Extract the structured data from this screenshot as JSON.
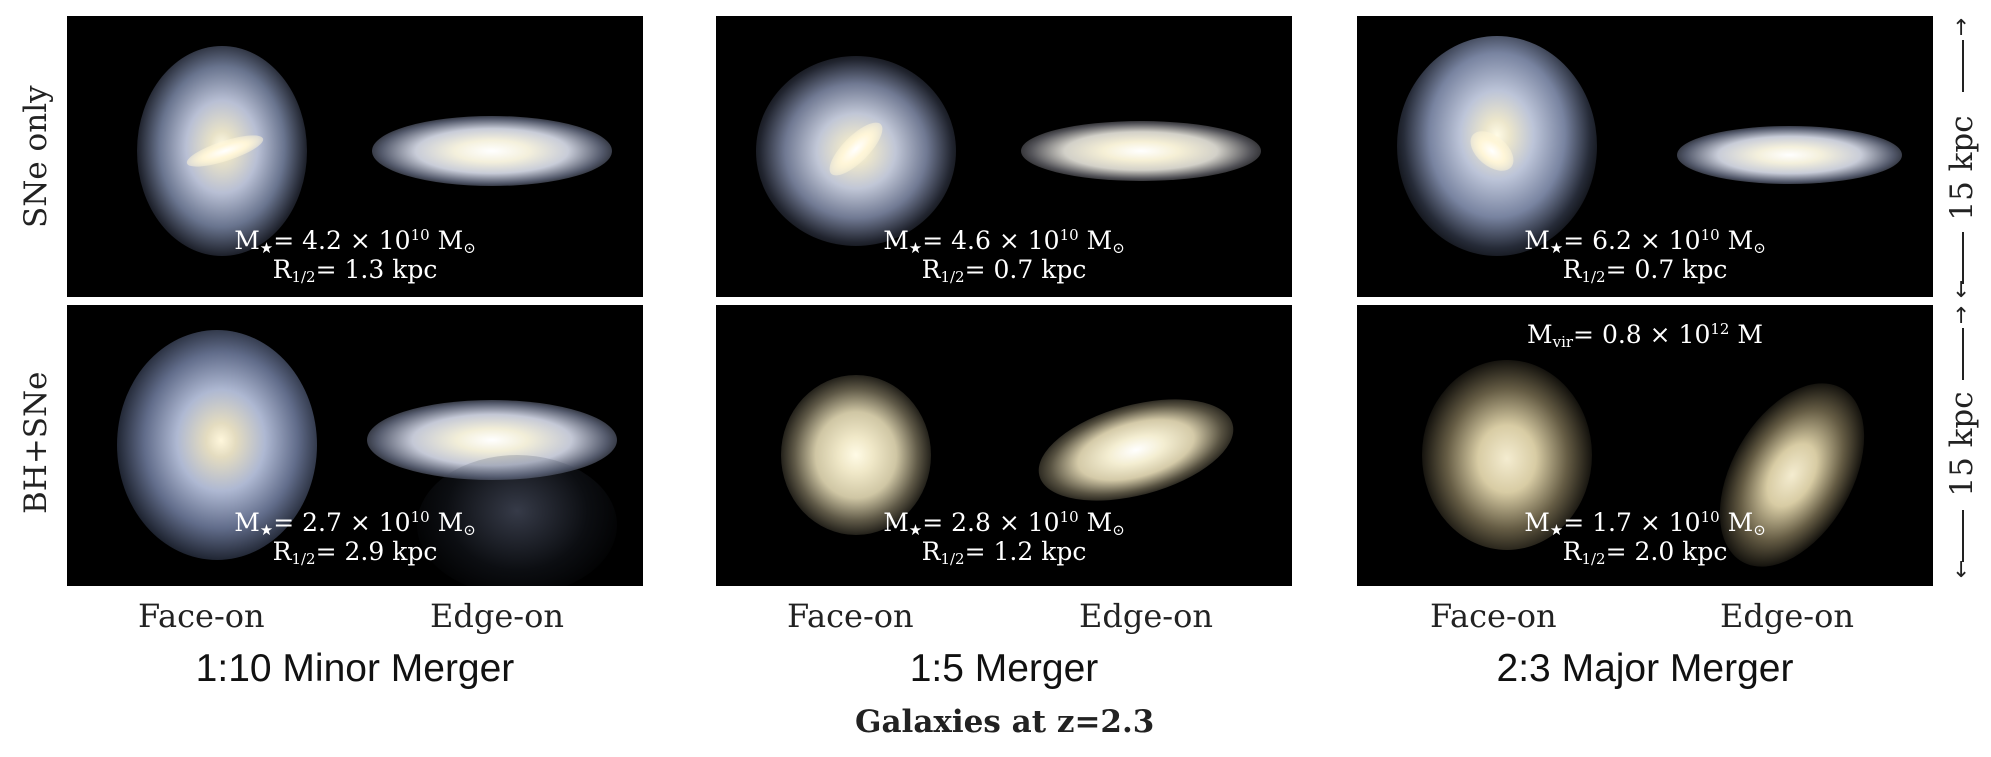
{
  "row_labels": {
    "top": "SNe only",
    "bottom": "BH+SNe"
  },
  "scale_labels": {
    "top": "15 kpc",
    "bottom": "15 kpc"
  },
  "view_labels": {
    "face": "Face-on",
    "edge": "Edge-on"
  },
  "columns": [
    {
      "title": "1:10 Minor Merger",
      "top": {
        "mass_prefix": "= 4.2 × 10",
        "mass_exp": "10",
        "radius": "= 1.3 kpc"
      },
      "bottom": {
        "mass_prefix": "= 2.7 × 10",
        "mass_exp": "10",
        "radius": "= 2.9 kpc"
      }
    },
    {
      "title": "1:5 Merger",
      "top": {
        "mass_prefix": "= 4.6 × 10",
        "mass_exp": "10",
        "radius": "= 0.7 kpc"
      },
      "bottom": {
        "mass_prefix": "= 2.8 × 10",
        "mass_exp": "10",
        "radius": "= 1.2 kpc"
      }
    },
    {
      "title": "2:3 Major Merger",
      "top": {
        "mass_prefix": "= 6.2 × 10",
        "mass_exp": "10",
        "radius": "= 0.7 kpc"
      },
      "bottom": {
        "mass_prefix": "= 1.7 × 10",
        "mass_exp": "10",
        "radius": "= 2.0 kpc"
      },
      "virial": {
        "prefix": "= 0.8 × 10",
        "exp": "12",
        "unit": " M"
      }
    }
  ],
  "symbols": {
    "mass": "M",
    "star": "★",
    "sun": "M",
    "sun_symbol": "⊙",
    "radius": "R",
    "half": "1/2",
    "vir": "vir"
  },
  "caption": "Galaxies at z=2.3",
  "colors": {
    "panel_bg": "#000000",
    "star_core": "#fff8e0",
    "disk_blue": "#a8b8d8"
  }
}
